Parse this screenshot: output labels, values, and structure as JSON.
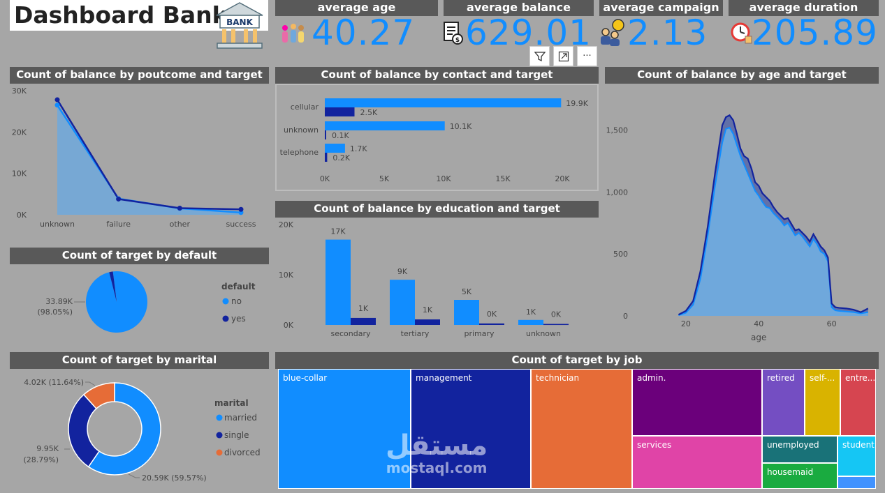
{
  "dashboard_title": "Dashboard Bank",
  "bank_icon_label": "BANK",
  "kpis": [
    {
      "label": "average age",
      "value": "40.27"
    },
    {
      "label": "average balance",
      "value": "629.01"
    },
    {
      "label": "average campaign",
      "value": "2.13"
    },
    {
      "label": "average duration",
      "value": "205.89"
    }
  ],
  "toolbar": {
    "more_label": "···"
  },
  "watermark": {
    "arabic": "مستقل",
    "latin": "mostaql.com"
  },
  "colors": {
    "primary": "#118dff",
    "secondary": "#12239e",
    "tertiary": "#e66c37",
    "panel_header": "#595959",
    "background": "#a6a6a6"
  },
  "chart_data": [
    {
      "id": "poutcome",
      "type": "area",
      "title": "Count of balance by poutcome and target",
      "categories": [
        "unknown",
        "failure",
        "other",
        "success"
      ],
      "series": [
        {
          "name": "no",
          "values": [
            26500,
            3900,
            1550,
            550
          ]
        },
        {
          "name": "yes",
          "values": [
            27800,
            3800,
            1600,
            1300
          ]
        }
      ],
      "ylim": [
        0,
        30000
      ],
      "yticks": [
        0,
        10000,
        20000,
        30000
      ],
      "ytick_labels": [
        "0K",
        "10K",
        "20K",
        "30K"
      ]
    },
    {
      "id": "contact",
      "type": "bar",
      "orientation": "horizontal",
      "title": "Count of balance by contact and target",
      "categories": [
        "cellular",
        "unknown",
        "telephone"
      ],
      "series": [
        {
          "name": "no",
          "values": [
            19900,
            10100,
            1700
          ],
          "labels": [
            "19.9K",
            "10.1K",
            "1.7K"
          ]
        },
        {
          "name": "yes",
          "values": [
            2500,
            100,
            200
          ],
          "labels": [
            "2.5K",
            "0.1K",
            "0.2K"
          ]
        }
      ],
      "xlim": [
        0,
        20000
      ],
      "xticks": [
        0,
        5000,
        10000,
        15000,
        20000
      ],
      "xtick_labels": [
        "0K",
        "5K",
        "10K",
        "15K",
        "20K"
      ]
    },
    {
      "id": "education",
      "type": "bar",
      "title": "Count of balance by education and target",
      "categories": [
        "secondary",
        "tertiary",
        "primary",
        "unknown"
      ],
      "series": [
        {
          "name": "no",
          "values": [
            17000,
            9000,
            5000,
            1000
          ],
          "labels": [
            "17K",
            "9K",
            "5K",
            "1K"
          ]
        },
        {
          "name": "yes",
          "values": [
            1400,
            1100,
            300,
            200
          ],
          "labels": [
            "1K",
            "1K",
            "0K",
            "0K"
          ]
        }
      ],
      "ylim": [
        0,
        20000
      ],
      "yticks": [
        0,
        10000,
        20000
      ],
      "ytick_labels": [
        "0K",
        "10K",
        "20K"
      ]
    },
    {
      "id": "age",
      "type": "area",
      "title": "Count of balance by age and target",
      "xlabel": "age",
      "x": [
        18,
        20,
        22,
        24,
        26,
        28,
        30,
        31,
        32,
        33,
        34,
        35,
        36,
        37,
        38,
        39,
        40,
        41,
        42,
        43,
        44,
        45,
        46,
        47,
        48,
        49,
        50,
        51,
        52,
        53,
        54,
        55,
        56,
        57,
        58,
        59,
        60,
        61,
        62,
        64,
        66,
        68,
        70
      ],
      "series": [
        {
          "name": "no",
          "values": [
            5,
            25,
            90,
            300,
            650,
            1050,
            1400,
            1510,
            1520,
            1470,
            1380,
            1290,
            1220,
            1150,
            1080,
            1010,
            970,
            920,
            880,
            870,
            830,
            800,
            770,
            730,
            750,
            700,
            650,
            670,
            640,
            600,
            560,
            620,
            580,
            520,
            500,
            440,
            70,
            45,
            40,
            35,
            30,
            20,
            30
          ]
        },
        {
          "name": "yes",
          "values": [
            10,
            40,
            120,
            360,
            720,
            1150,
            1540,
            1605,
            1620,
            1580,
            1470,
            1350,
            1290,
            1270,
            1190,
            1080,
            1050,
            990,
            960,
            930,
            880,
            840,
            810,
            780,
            790,
            740,
            690,
            700,
            670,
            640,
            600,
            660,
            610,
            560,
            530,
            470,
            100,
            70,
            65,
            60,
            50,
            30,
            60
          ]
        }
      ],
      "xlim": [
        16,
        71
      ],
      "xticks": [
        20,
        40,
        60
      ],
      "ylim": [
        0,
        1650
      ],
      "yticks": [
        0,
        500,
        1000,
        1500
      ],
      "ytick_labels": [
        "0",
        "500",
        "1,000",
        "1,500"
      ]
    },
    {
      "id": "default",
      "type": "pie",
      "title": "Count of target by default",
      "legend_title": "default",
      "legend_position": "right",
      "slices": [
        {
          "name": "no",
          "value": 98.05
        },
        {
          "name": "yes",
          "value": 1.95
        }
      ],
      "data_label_lines": [
        "33.89K",
        "(98.05%)"
      ]
    },
    {
      "id": "marital",
      "type": "pie",
      "donut": true,
      "title": "Count of target by marital",
      "legend_title": "marital",
      "legend_position": "right",
      "slices": [
        {
          "name": "married",
          "value": 59.57
        },
        {
          "name": "single",
          "value": 28.79
        },
        {
          "name": "divorced",
          "value": 11.64
        }
      ],
      "data_labels": {
        "married": "20.59K (59.57%)",
        "single_line1": "9.95K",
        "single_line2": "(28.79%)",
        "divorced": "4.02K (11.64%)"
      }
    },
    {
      "id": "job",
      "type": "treemap",
      "title": "Count of target by job",
      "items": [
        {
          "name": "blue-collar",
          "label": "blue-collar"
        },
        {
          "name": "management",
          "label": "management"
        },
        {
          "name": "technician",
          "label": "technician"
        },
        {
          "name": "admin.",
          "label": "admin."
        },
        {
          "name": "services",
          "label": "services"
        },
        {
          "name": "retired",
          "label": "retired"
        },
        {
          "name": "self-employed",
          "label": "self-..."
        },
        {
          "name": "entrepreneur",
          "label": "entre..."
        },
        {
          "name": "unemployed",
          "label": "unemployed"
        },
        {
          "name": "housemaid",
          "label": "housemaid"
        },
        {
          "name": "student",
          "label": "student"
        }
      ]
    }
  ]
}
